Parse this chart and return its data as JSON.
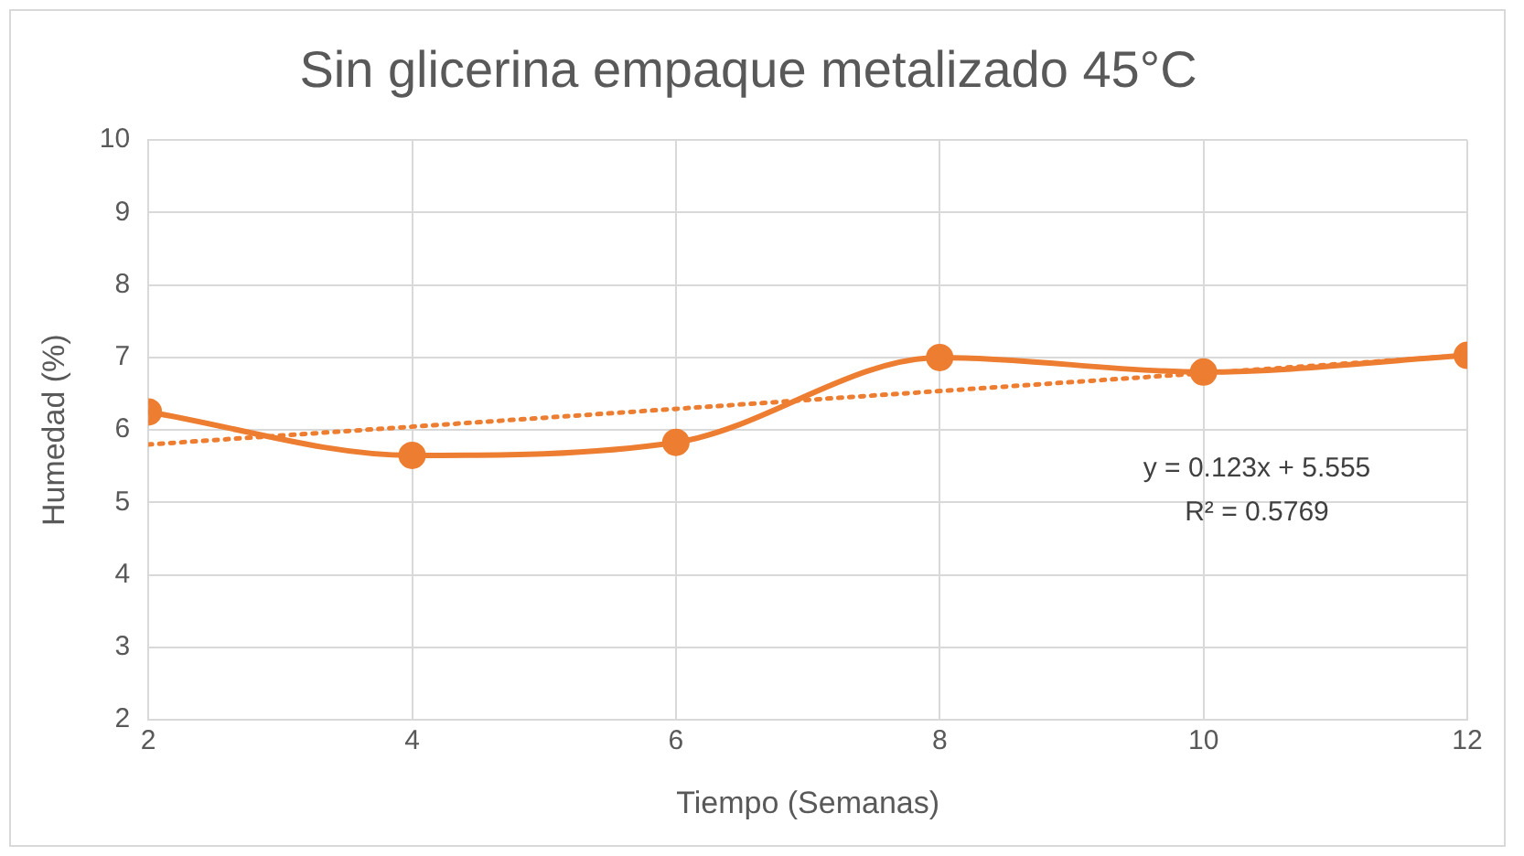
{
  "chart_data": {
    "type": "line",
    "title": "Sin glicerina empaque metalizado 45°C",
    "xlabel": "Tiempo (Semanas)",
    "ylabel": "Humedad (%)",
    "x": [
      2,
      4,
      6,
      8,
      10,
      12
    ],
    "series": [
      {
        "color": "#ed7d31",
        "values": [
          6.25,
          5.65,
          5.83,
          7.0,
          6.8,
          7.03
        ],
        "marker": "circle",
        "line_style": "solid"
      },
      {
        "type": "line",
        "color": "#ed7d31",
        "x": [
          2,
          12
        ],
        "values": [
          5.8,
          7.03
        ],
        "marker": "none",
        "line_style": "dotted"
      }
    ],
    "xlim": [
      2,
      12
    ],
    "xticks": [
      2,
      4,
      6,
      8,
      10,
      12
    ],
    "ylim": [
      2,
      10
    ],
    "yticks": [
      2,
      3,
      4,
      5,
      6,
      7,
      8,
      9,
      10
    ],
    "grid": true,
    "legend": false,
    "annotations": [
      "y = 0.123x + 5.555",
      "R² = 0.5769"
    ]
  }
}
